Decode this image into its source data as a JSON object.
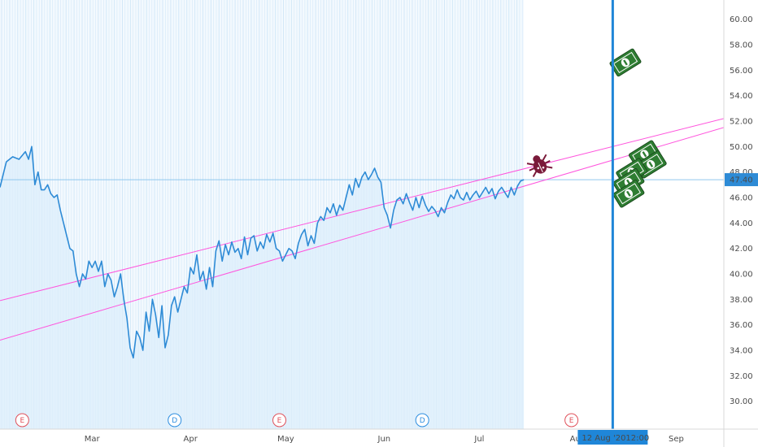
{
  "chart_data": {
    "type": "line",
    "title": "",
    "xlabel": "",
    "ylabel": "",
    "ylim": [
      28,
      61
    ],
    "y_ticks": [
      "60.00",
      "58.00",
      "56.00",
      "54.00",
      "52.00",
      "50.00",
      "48.00",
      "46.00",
      "44.00",
      "42.00",
      "40.00",
      "38.00",
      "36.00",
      "34.00",
      "32.00",
      "30.00"
    ],
    "x_ticks": [
      "Mar",
      "Apr",
      "May",
      "Jun",
      "Jul",
      "Aug",
      "Sep"
    ],
    "x_tick_days": [
      29,
      60,
      90,
      121,
      151,
      182,
      213
    ],
    "x_domain_days": [
      0,
      228
    ],
    "last_price_label": "47.40",
    "last_price": 47.4,
    "crosshair_date_label": "12 Aug '20",
    "crosshair_time_label": "12:00",
    "crosshair_day": 193,
    "series": [
      {
        "values": [
          [
            0,
            46.8
          ],
          [
            2,
            48.8
          ],
          [
            4,
            49.2
          ],
          [
            6,
            49.0
          ],
          [
            8,
            49.6
          ],
          [
            9,
            49.0
          ],
          [
            10,
            50.0
          ],
          [
            11,
            47.0
          ],
          [
            12,
            48.0
          ],
          [
            13,
            46.6
          ],
          [
            14,
            46.6
          ],
          [
            15,
            47.0
          ],
          [
            16,
            46.3
          ],
          [
            17,
            46.0
          ],
          [
            18,
            46.2
          ],
          [
            19,
            45.0
          ],
          [
            20,
            44.0
          ],
          [
            21,
            43.0
          ],
          [
            22,
            42.0
          ],
          [
            23,
            41.8
          ],
          [
            24,
            40.0
          ],
          [
            25,
            39.0
          ],
          [
            26,
            40.0
          ],
          [
            27,
            39.6
          ],
          [
            28,
            41.0
          ],
          [
            29,
            40.5
          ],
          [
            30,
            41.0
          ],
          [
            31,
            40.2
          ],
          [
            32,
            41.0
          ],
          [
            33,
            39.0
          ],
          [
            34,
            40.0
          ],
          [
            35,
            39.5
          ],
          [
            36,
            38.2
          ],
          [
            37,
            39.0
          ],
          [
            38,
            40.0
          ],
          [
            39,
            38.0
          ],
          [
            40,
            36.5
          ],
          [
            41,
            34.2
          ],
          [
            42,
            33.4
          ],
          [
            43,
            35.5
          ],
          [
            44,
            35.0
          ],
          [
            45,
            34.0
          ],
          [
            46,
            37.0
          ],
          [
            47,
            35.5
          ],
          [
            48,
            38.0
          ],
          [
            49,
            36.8
          ],
          [
            50,
            35.0
          ],
          [
            51,
            37.5
          ],
          [
            52,
            34.2
          ],
          [
            53,
            35.2
          ],
          [
            54,
            37.5
          ],
          [
            55,
            38.2
          ],
          [
            56,
            37.0
          ],
          [
            57,
            38.0
          ],
          [
            58,
            39.0
          ],
          [
            59,
            38.5
          ],
          [
            60,
            40.5
          ],
          [
            61,
            40.0
          ],
          [
            62,
            41.5
          ],
          [
            63,
            39.5
          ],
          [
            64,
            40.2
          ],
          [
            65,
            38.8
          ],
          [
            66,
            40.5
          ],
          [
            67,
            39.0
          ],
          [
            68,
            41.8
          ],
          [
            69,
            42.6
          ],
          [
            70,
            41.0
          ],
          [
            71,
            42.3
          ],
          [
            72,
            41.5
          ],
          [
            73,
            42.5
          ],
          [
            74,
            41.7
          ],
          [
            75,
            42.0
          ],
          [
            76,
            41.2
          ],
          [
            77,
            42.9
          ],
          [
            78,
            41.5
          ],
          [
            79,
            42.8
          ],
          [
            80,
            43.0
          ],
          [
            81,
            41.8
          ],
          [
            82,
            42.5
          ],
          [
            83,
            42.0
          ],
          [
            84,
            43.1
          ],
          [
            85,
            42.5
          ],
          [
            86,
            43.2
          ],
          [
            87,
            42.0
          ],
          [
            88,
            41.8
          ],
          [
            89,
            41.0
          ],
          [
            90,
            41.5
          ],
          [
            91,
            42.0
          ],
          [
            92,
            41.8
          ],
          [
            93,
            41.2
          ],
          [
            94,
            42.4
          ],
          [
            95,
            43.1
          ],
          [
            96,
            43.5
          ],
          [
            97,
            42.2
          ],
          [
            98,
            43.0
          ],
          [
            99,
            42.4
          ],
          [
            100,
            44.0
          ],
          [
            101,
            44.5
          ],
          [
            102,
            44.2
          ],
          [
            103,
            45.2
          ],
          [
            104,
            44.8
          ],
          [
            105,
            45.5
          ],
          [
            106,
            44.6
          ],
          [
            107,
            45.4
          ],
          [
            108,
            45.0
          ],
          [
            109,
            46.0
          ],
          [
            110,
            47.0
          ],
          [
            111,
            46.2
          ],
          [
            112,
            47.5
          ],
          [
            113,
            46.8
          ],
          [
            114,
            47.6
          ],
          [
            115,
            48.0
          ],
          [
            116,
            47.4
          ],
          [
            117,
            47.8
          ],
          [
            118,
            48.3
          ],
          [
            119,
            47.6
          ],
          [
            120,
            47.2
          ],
          [
            121,
            45.2
          ],
          [
            122,
            44.6
          ],
          [
            123,
            43.6
          ],
          [
            124,
            45.0
          ],
          [
            125,
            45.8
          ],
          [
            126,
            46.0
          ],
          [
            127,
            45.5
          ],
          [
            128,
            46.3
          ],
          [
            129,
            45.6
          ],
          [
            130,
            45.0
          ],
          [
            131,
            46.0
          ],
          [
            132,
            45.2
          ],
          [
            133,
            46.1
          ],
          [
            134,
            45.4
          ],
          [
            135,
            44.9
          ],
          [
            136,
            45.3
          ],
          [
            137,
            45.0
          ],
          [
            138,
            44.5
          ],
          [
            139,
            45.2
          ],
          [
            140,
            44.8
          ],
          [
            141,
            45.6
          ],
          [
            142,
            46.2
          ],
          [
            143,
            45.9
          ],
          [
            144,
            46.6
          ],
          [
            145,
            46.0
          ],
          [
            146,
            45.8
          ],
          [
            147,
            46.4
          ],
          [
            148,
            45.8
          ],
          [
            149,
            46.2
          ],
          [
            150,
            46.5
          ],
          [
            151,
            46.0
          ],
          [
            152,
            46.4
          ],
          [
            153,
            46.8
          ],
          [
            154,
            46.3
          ],
          [
            155,
            46.7
          ],
          [
            156,
            45.9
          ],
          [
            157,
            46.5
          ],
          [
            158,
            46.8
          ],
          [
            159,
            46.4
          ],
          [
            160,
            46.0
          ],
          [
            161,
            46.8
          ],
          [
            162,
            46.2
          ],
          [
            163,
            46.9
          ],
          [
            164,
            47.3
          ],
          [
            165,
            47.4
          ]
        ]
      }
    ],
    "trendlines": [
      {
        "from": [
          0,
          37.9
        ],
        "to": [
          228,
          52.2
        ]
      },
      {
        "from": [
          0,
          34.8
        ],
        "to": [
          228,
          51.5
        ]
      }
    ],
    "annotations": [
      {
        "type": "bug",
        "day": 170,
        "price": 48.5,
        "color": "#7a1a3a"
      },
      {
        "type": "banknote",
        "day": 197,
        "price": 56.6,
        "color": "#2e7d32"
      },
      {
        "type": "banknote",
        "day": 203,
        "price": 49.4,
        "color": "#2e7d32"
      },
      {
        "type": "banknote",
        "day": 205,
        "price": 48.6,
        "color": "#2e7d32"
      },
      {
        "type": "banknote",
        "day": 199,
        "price": 48.0,
        "color": "#2e7d32"
      },
      {
        "type": "banknote",
        "day": 198,
        "price": 47.2,
        "color": "#2e7d32"
      },
      {
        "type": "banknote",
        "day": 198,
        "price": 46.3,
        "color": "#2e7d32"
      }
    ],
    "events": [
      {
        "letter": "E",
        "day": 7,
        "color": "#e0505a"
      },
      {
        "letter": "D",
        "day": 55,
        "color": "#2d8ee0"
      },
      {
        "letter": "E",
        "day": 88,
        "color": "#e0505a"
      },
      {
        "letter": "D",
        "day": 133,
        "color": "#2d8ee0"
      },
      {
        "letter": "E",
        "day": 180,
        "color": "#e0505a"
      }
    ],
    "colors": {
      "line": "#2e8bd6",
      "area_fill": "#dcedfb",
      "trendline": "#ff55dd",
      "crosshair": "#1f86d8",
      "price_label_bg": "#2e8bd6",
      "axis_text": "#4a4a4a",
      "last_price_line": "#90c8ee"
    }
  }
}
